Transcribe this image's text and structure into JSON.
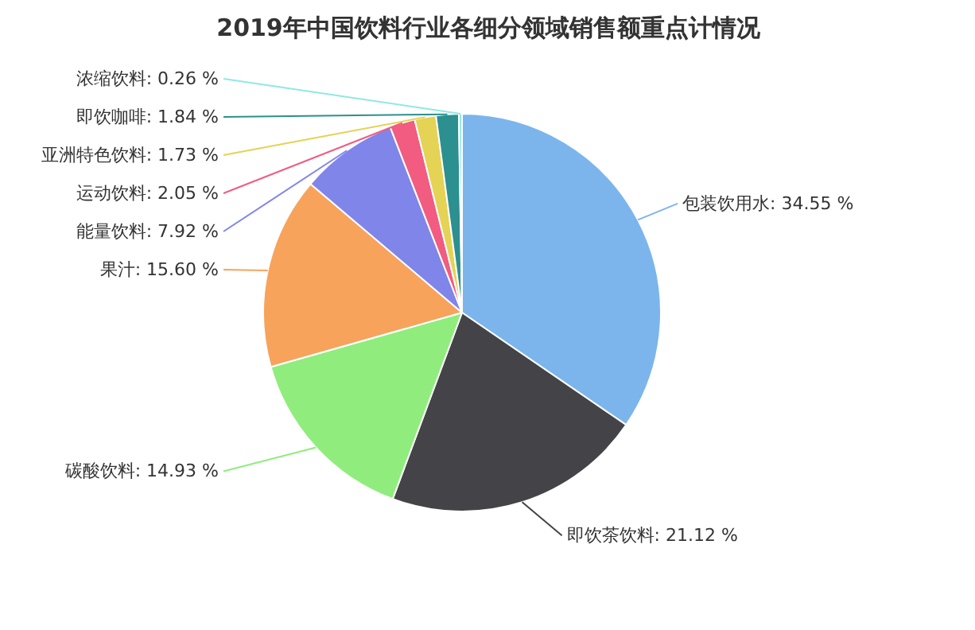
{
  "chart_data": {
    "type": "pie",
    "title": "2019年中国饮料行业各细分领域销售额重点计情况",
    "categories": [
      "包装饮用水",
      "即饮茶饮料",
      "碳酸饮料",
      "果汁",
      "能量饮料",
      "运动饮料",
      "亚洲特色饮料",
      "即饮咖啡",
      "浓缩饮料"
    ],
    "values": [
      34.55,
      21.12,
      14.93,
      15.6,
      7.92,
      2.05,
      1.73,
      1.84,
      0.26
    ],
    "colors": [
      "#7cb5ec",
      "#434348",
      "#90ed7d",
      "#f7a35c",
      "#8085e9",
      "#f15c80",
      "#e4d354",
      "#2b908f",
      "#91e8e1"
    ],
    "value_labels": [
      "34.55 %",
      "21.12 %",
      "14.93 %",
      "15.60 %",
      "7.92 %",
      "2.05 %",
      "1.73 %",
      "1.84 %",
      "0.26 %"
    ]
  }
}
